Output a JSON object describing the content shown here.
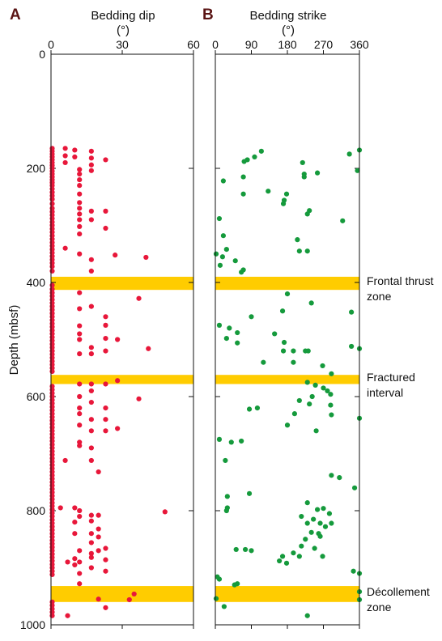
{
  "figure": {
    "ylabel": "Depth (mbsf)",
    "band_color": "#FFCC00",
    "bands": [
      {
        "from": 390,
        "to": 413,
        "label_lines": [
          "Frontal thrust",
          "zone"
        ]
      },
      {
        "from": 562,
        "to": 578,
        "label_lines": [
          "Fractured",
          "interval"
        ]
      },
      {
        "from": 932,
        "to": 960,
        "label_lines": [
          "Décollement",
          "zone"
        ]
      }
    ]
  },
  "chart_data": [
    {
      "type": "scatter",
      "panel_letter": "A",
      "title_lines": [
        "Bedding dip",
        "(°)"
      ],
      "xlim": [
        0,
        60
      ],
      "xticks": [
        0,
        30,
        60
      ],
      "ylim": [
        0,
        1000
      ],
      "yticks": [
        0,
        200,
        400,
        600,
        800,
        1000
      ],
      "color": "#E8173A",
      "points": [
        [
          0,
          165
        ],
        [
          0,
          170
        ],
        [
          0,
          175
        ],
        [
          0,
          180
        ],
        [
          0,
          185
        ],
        [
          0,
          190
        ],
        [
          0,
          195
        ],
        [
          0,
          200
        ],
        [
          0,
          205
        ],
        [
          0,
          210
        ],
        [
          0,
          215
        ],
        [
          0,
          220
        ],
        [
          0,
          225
        ],
        [
          0,
          230
        ],
        [
          0,
          236
        ],
        [
          0,
          242
        ],
        [
          0,
          248
        ],
        [
          0,
          254
        ],
        [
          0,
          262
        ],
        [
          0,
          270
        ],
        [
          0,
          276
        ],
        [
          0,
          282
        ],
        [
          0,
          288
        ],
        [
          0,
          294
        ],
        [
          0,
          300
        ],
        [
          0,
          306
        ],
        [
          0,
          312
        ],
        [
          0,
          318
        ],
        [
          0,
          324
        ],
        [
          0,
          330
        ],
        [
          0,
          336
        ],
        [
          0,
          342
        ],
        [
          0,
          348
        ],
        [
          0,
          354
        ],
        [
          0,
          360
        ],
        [
          0,
          366
        ],
        [
          0,
          372
        ],
        [
          0,
          380
        ],
        [
          0,
          405
        ],
        [
          0,
          412
        ],
        [
          0,
          418
        ],
        [
          0,
          424
        ],
        [
          0,
          430
        ],
        [
          0,
          436
        ],
        [
          0,
          442
        ],
        [
          0,
          448
        ],
        [
          0,
          454
        ],
        [
          0,
          460
        ],
        [
          0,
          466
        ],
        [
          0,
          472
        ],
        [
          0,
          478
        ],
        [
          0,
          484
        ],
        [
          0,
          490
        ],
        [
          0,
          496
        ],
        [
          0,
          502
        ],
        [
          0,
          508
        ],
        [
          0,
          514
        ],
        [
          0,
          520
        ],
        [
          0,
          526
        ],
        [
          0,
          532
        ],
        [
          0,
          538
        ],
        [
          0,
          544
        ],
        [
          0,
          550
        ],
        [
          0,
          556
        ],
        [
          0,
          582
        ],
        [
          0,
          588
        ],
        [
          0,
          594
        ],
        [
          0,
          600
        ],
        [
          0,
          606
        ],
        [
          0,
          612
        ],
        [
          0,
          618
        ],
        [
          0,
          624
        ],
        [
          0,
          630
        ],
        [
          0,
          636
        ],
        [
          0,
          642
        ],
        [
          0,
          648
        ],
        [
          0,
          654
        ],
        [
          0,
          660
        ],
        [
          0,
          666
        ],
        [
          0,
          672
        ],
        [
          0,
          678
        ],
        [
          0,
          684
        ],
        [
          0,
          690
        ],
        [
          0,
          696
        ],
        [
          0,
          702
        ],
        [
          0,
          708
        ],
        [
          0,
          714
        ],
        [
          0,
          720
        ],
        [
          0,
          726
        ],
        [
          0,
          732
        ],
        [
          0,
          738
        ],
        [
          0,
          744
        ],
        [
          0,
          750
        ],
        [
          0,
          756
        ],
        [
          0,
          762
        ],
        [
          0,
          768
        ],
        [
          0,
          774
        ],
        [
          0,
          780
        ],
        [
          0,
          786
        ],
        [
          0,
          792
        ],
        [
          0,
          798
        ],
        [
          0,
          804
        ],
        [
          0,
          810
        ],
        [
          0,
          816
        ],
        [
          0,
          822
        ],
        [
          0,
          828
        ],
        [
          0,
          834
        ],
        [
          0,
          840
        ],
        [
          0,
          846
        ],
        [
          0,
          852
        ],
        [
          0,
          858
        ],
        [
          0,
          864
        ],
        [
          0,
          870
        ],
        [
          0,
          876
        ],
        [
          0,
          882
        ],
        [
          0,
          888
        ],
        [
          0,
          894
        ],
        [
          0,
          900
        ],
        [
          0,
          906
        ],
        [
          0,
          912
        ],
        [
          0,
          960
        ],
        [
          0,
          966
        ],
        [
          0,
          972
        ],
        [
          0,
          978
        ],
        [
          0,
          984
        ],
        [
          6,
          165
        ],
        [
          6,
          178
        ],
        [
          6,
          190
        ],
        [
          10,
          168
        ],
        [
          10,
          180
        ],
        [
          17,
          170
        ],
        [
          17,
          182
        ],
        [
          17,
          194
        ],
        [
          17,
          204
        ],
        [
          23,
          185
        ],
        [
          12,
          202
        ],
        [
          12,
          210
        ],
        [
          12,
          220
        ],
        [
          12,
          230
        ],
        [
          12,
          245
        ],
        [
          12,
          260
        ],
        [
          12,
          270
        ],
        [
          12,
          280
        ],
        [
          12,
          290
        ],
        [
          12,
          302
        ],
        [
          12,
          315
        ],
        [
          17,
          275
        ],
        [
          17,
          290
        ],
        [
          23,
          275
        ],
        [
          23,
          305
        ],
        [
          6,
          340
        ],
        [
          12,
          350
        ],
        [
          17,
          360
        ],
        [
          17,
          380
        ],
        [
          27,
          352
        ],
        [
          40,
          356
        ],
        [
          12,
          418
        ],
        [
          12,
          446
        ],
        [
          12,
          476
        ],
        [
          12,
          490
        ],
        [
          12,
          500
        ],
        [
          12,
          525
        ],
        [
          17,
          442
        ],
        [
          23,
          460
        ],
        [
          23,
          475
        ],
        [
          23,
          498
        ],
        [
          17,
          514
        ],
        [
          17,
          525
        ],
        [
          23,
          520
        ],
        [
          28,
          500
        ],
        [
          37,
          428
        ],
        [
          41,
          516
        ],
        [
          12,
          578
        ],
        [
          12,
          600
        ],
        [
          12,
          620
        ],
        [
          12,
          630
        ],
        [
          12,
          650
        ],
        [
          12,
          680
        ],
        [
          12,
          686
        ],
        [
          17,
          578
        ],
        [
          17,
          590
        ],
        [
          17,
          610
        ],
        [
          17,
          640
        ],
        [
          17,
          660
        ],
        [
          23,
          578
        ],
        [
          23,
          620
        ],
        [
          23,
          640
        ],
        [
          23,
          660
        ],
        [
          28,
          572
        ],
        [
          28,
          656
        ],
        [
          37,
          604
        ],
        [
          17,
          690
        ],
        [
          17,
          712
        ],
        [
          20,
          732
        ],
        [
          6,
          712
        ],
        [
          4,
          795
        ],
        [
          10,
          795
        ],
        [
          10,
          820
        ],
        [
          10,
          840
        ],
        [
          12,
          800
        ],
        [
          12,
          810
        ],
        [
          12,
          870
        ],
        [
          12,
          890
        ],
        [
          12,
          910
        ],
        [
          12,
          928
        ],
        [
          17,
          808
        ],
        [
          17,
          818
        ],
        [
          17,
          840
        ],
        [
          17,
          856
        ],
        [
          17,
          875
        ],
        [
          17,
          900
        ],
        [
          20,
          808
        ],
        [
          20,
          832
        ],
        [
          20,
          846
        ],
        [
          20,
          870
        ],
        [
          23,
          866
        ],
        [
          23,
          886
        ],
        [
          23,
          906
        ],
        [
          23,
          970
        ],
        [
          48,
          802
        ],
        [
          7,
          890
        ],
        [
          10,
          884
        ],
        [
          10,
          895
        ],
        [
          17,
          882
        ],
        [
          20,
          955
        ],
        [
          33,
          956
        ],
        [
          35,
          946
        ],
        [
          7,
          984
        ]
      ]
    },
    {
      "type": "scatter",
      "panel_letter": "B",
      "title_lines": [
        "Bedding strike",
        "(°)"
      ],
      "xlim": [
        0,
        360
      ],
      "xticks": [
        0,
        90,
        180,
        270,
        360
      ],
      "ylim": [
        0,
        1000
      ],
      "yticks": [
        0,
        200,
        400,
        600,
        800,
        1000
      ],
      "color": "#159A3C",
      "points": [
        [
          115,
          170
        ],
        [
          98,
          180
        ],
        [
          80,
          185
        ],
        [
          72,
          188
        ],
        [
          335,
          175
        ],
        [
          360,
          168
        ],
        [
          355,
          204
        ],
        [
          218,
          190
        ],
        [
          222,
          210
        ],
        [
          222,
          215
        ],
        [
          255,
          208
        ],
        [
          70,
          215
        ],
        [
          20,
          222
        ],
        [
          70,
          245
        ],
        [
          132,
          240
        ],
        [
          178,
          245
        ],
        [
          235,
          274
        ],
        [
          230,
          280
        ],
        [
          172,
          256
        ],
        [
          170,
          262
        ],
        [
          205,
          325
        ],
        [
          318,
          292
        ],
        [
          10,
          288
        ],
        [
          20,
          318
        ],
        [
          28,
          342
        ],
        [
          210,
          345
        ],
        [
          230,
          345
        ],
        [
          2,
          350
        ],
        [
          18,
          355
        ],
        [
          50,
          362
        ],
        [
          12,
          370
        ],
        [
          70,
          378
        ],
        [
          65,
          382
        ],
        [
          180,
          420
        ],
        [
          240,
          436
        ],
        [
          340,
          452
        ],
        [
          168,
          450
        ],
        [
          90,
          460
        ],
        [
          10,
          475
        ],
        [
          35,
          480
        ],
        [
          55,
          488
        ],
        [
          28,
          498
        ],
        [
          55,
          506
        ],
        [
          148,
          490
        ],
        [
          172,
          505
        ],
        [
          170,
          520
        ],
        [
          195,
          520
        ],
        [
          225,
          520
        ],
        [
          232,
          520
        ],
        [
          340,
          512
        ],
        [
          360,
          516
        ],
        [
          120,
          540
        ],
        [
          195,
          540
        ],
        [
          268,
          546
        ],
        [
          290,
          560
        ],
        [
          230,
          575
        ],
        [
          250,
          580
        ],
        [
          270,
          585
        ],
        [
          280,
          590
        ],
        [
          288,
          596
        ],
        [
          242,
          600
        ],
        [
          210,
          607
        ],
        [
          235,
          613
        ],
        [
          198,
          630
        ],
        [
          105,
          620
        ],
        [
          85,
          622
        ],
        [
          288,
          615
        ],
        [
          360,
          638
        ],
        [
          290,
          632
        ],
        [
          180,
          650
        ],
        [
          252,
          660
        ],
        [
          10,
          675
        ],
        [
          40,
          680
        ],
        [
          65,
          678
        ],
        [
          25,
          712
        ],
        [
          290,
          738
        ],
        [
          310,
          742
        ],
        [
          348,
          760
        ],
        [
          85,
          770
        ],
        [
          30,
          775
        ],
        [
          30,
          795
        ],
        [
          28,
          800
        ],
        [
          270,
          796
        ],
        [
          230,
          786
        ],
        [
          255,
          798
        ],
        [
          245,
          815
        ],
        [
          285,
          805
        ],
        [
          215,
          810
        ],
        [
          230,
          822
        ],
        [
          262,
          822
        ],
        [
          275,
          828
        ],
        [
          290,
          822
        ],
        [
          240,
          838
        ],
        [
          258,
          840
        ],
        [
          262,
          845
        ],
        [
          225,
          850
        ],
        [
          215,
          862
        ],
        [
          248,
          866
        ],
        [
          195,
          874
        ],
        [
          210,
          880
        ],
        [
          168,
          880
        ],
        [
          160,
          888
        ],
        [
          178,
          892
        ],
        [
          268,
          880
        ],
        [
          52,
          868
        ],
        [
          75,
          868
        ],
        [
          90,
          870
        ],
        [
          345,
          906
        ],
        [
          360,
          910
        ],
        [
          5,
          916
        ],
        [
          10,
          920
        ],
        [
          48,
          930
        ],
        [
          55,
          928
        ],
        [
          360,
          942
        ],
        [
          360,
          956
        ],
        [
          2,
          954
        ],
        [
          22,
          968
        ],
        [
          230,
          984
        ]
      ]
    }
  ]
}
